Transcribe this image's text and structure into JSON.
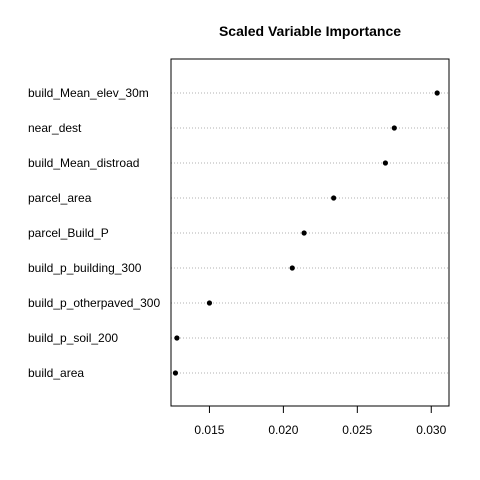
{
  "chart_data": {
    "type": "scatter",
    "title": "Scaled Variable Importance",
    "xlabel": "",
    "ylabel": "",
    "xlim": [
      0.0124,
      0.0312
    ],
    "xticks": [
      "0.015",
      "0.020",
      "0.025",
      "0.030"
    ],
    "xtick_values": [
      0.015,
      0.02,
      0.025,
      0.03
    ],
    "grid": "dotted horizontal guide per variable",
    "legend": "none",
    "point_color": "#000000",
    "variables": [
      "build_Mean_elev_30m",
      "near_dest",
      "build_Mean_distroad",
      "parcel_area",
      "parcel_Build_P",
      "build_p_building_300",
      "build_p_otherpaved_300",
      "build_p_soil_200",
      "build_area"
    ],
    "values": [
      0.0304,
      0.0275,
      0.0269,
      0.0234,
      0.0214,
      0.0206,
      0.015,
      0.0128,
      0.0127
    ]
  }
}
